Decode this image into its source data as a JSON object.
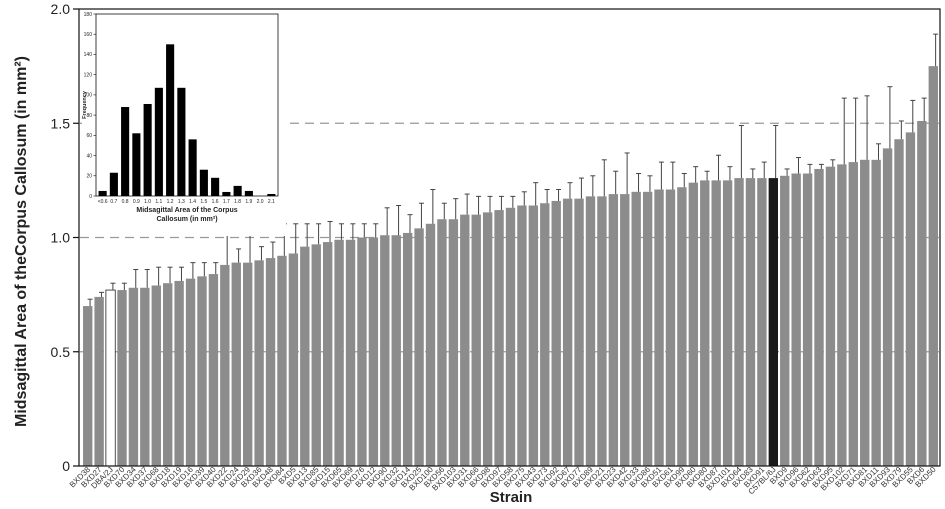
{
  "chart_data": [
    {
      "type": "bar",
      "ylabel": "Midsagittal Area of theCorpus Callosum  (in mm²)",
      "xlabel": "Strain",
      "ylim": [
        0,
        2.0
      ],
      "yticks": [
        "0",
        "0.5",
        "1.0",
        "1.5",
        "2.0"
      ],
      "reference_lines": [
        0.5,
        1.0,
        1.5
      ],
      "grid": false,
      "colors": {
        "default": "#8c8c8c",
        "highlight": "#1a1a1a",
        "open": "#ffffff",
        "errorbar": "#444444",
        "refline": "#999999"
      },
      "categories": [
        "BXD38",
        "BXD27",
        "DBA/2J",
        "BXD70",
        "BXD34",
        "BXD37",
        "BXD68",
        "BXD18",
        "BXD19",
        "BXD16",
        "BXD39",
        "BXD40",
        "BXD22",
        "BXD24",
        "BXD29",
        "BXD36",
        "BXD48",
        "BXD84",
        "BXD5",
        "BXD13",
        "BXD85",
        "BXD15",
        "BXD65",
        "BXD69",
        "BXD76",
        "BXD12",
        "BXD90",
        "BXD32",
        "BXD14",
        "BXD25",
        "BXD100",
        "BXD56",
        "BXD103",
        "BXD31",
        "BXD66",
        "BXD98",
        "BXD97",
        "BXD58",
        "BXD75",
        "BXD43",
        "BXD73",
        "BXD92",
        "BXD67",
        "BXD77",
        "BXD89",
        "BXD21",
        "BXD23",
        "BXD42",
        "BXD33",
        "BXD86",
        "BXD51",
        "BXD61",
        "BXD99",
        "BXD60",
        "BXD80",
        "BXD87",
        "BXD101",
        "BXD64",
        "BXD83",
        "BXD91",
        "C57BL/6J",
        "BXD9",
        "BXD96",
        "BXD62",
        "BXD63",
        "BXD95",
        "BXD102",
        "BXD71",
        "BXD81",
        "BXD11",
        "BXD93",
        "BXD79",
        "BXD55",
        "BXD6",
        "BXD50"
      ],
      "series": [
        {
          "values": [
            0.7,
            0.74,
            0.77,
            0.77,
            0.78,
            0.78,
            0.79,
            0.8,
            0.81,
            0.82,
            0.83,
            0.84,
            0.88,
            0.89,
            0.89,
            0.9,
            0.91,
            0.92,
            0.93,
            0.96,
            0.97,
            0.98,
            0.99,
            0.99,
            1.0,
            1.0,
            1.01,
            1.01,
            1.02,
            1.04,
            1.06,
            1.08,
            1.08,
            1.1,
            1.1,
            1.11,
            1.12,
            1.13,
            1.14,
            1.14,
            1.15,
            1.16,
            1.17,
            1.17,
            1.18,
            1.18,
            1.19,
            1.19,
            1.2,
            1.2,
            1.21,
            1.21,
            1.22,
            1.24,
            1.25,
            1.25,
            1.25,
            1.26,
            1.26,
            1.26,
            1.26,
            1.27,
            1.28,
            1.28,
            1.3,
            1.31,
            1.32,
            1.33,
            1.34,
            1.34,
            1.39,
            1.43,
            1.46,
            1.51,
            1.75
          ],
          "errors": [
            0.03,
            0.02,
            0.03,
            0.03,
            0.08,
            0.08,
            0.08,
            0.07,
            0.06,
            0.07,
            0.06,
            0.05,
            0.14,
            0.06,
            0.13,
            0.06,
            0.07,
            0.14,
            0.13,
            0.1,
            0.09,
            0.09,
            0.07,
            0.07,
            0.06,
            0.06,
            0.12,
            0.13,
            0.08,
            0.11,
            0.15,
            0.07,
            0.09,
            0.09,
            0.08,
            0.07,
            0.06,
            0.05,
            0.06,
            0.1,
            0.06,
            0.05,
            0.07,
            0.09,
            0.09,
            0.16,
            0.1,
            0.18,
            0.08,
            0.07,
            0.12,
            0.12,
            0.06,
            0.07,
            0.04,
            0.11,
            0.06,
            0.23,
            0.04,
            0.07,
            0.23,
            0.03,
            0.07,
            0.04,
            0.02,
            0.03,
            0.29,
            0.28,
            0.28,
            0.07,
            0.27,
            0.08,
            0.14,
            0.1,
            0.14
          ]
        }
      ],
      "highlight_index": 60,
      "open_index": 2
    },
    {
      "type": "bar",
      "xlabel": "Midsagittal Area of the Corpus Callosum (in mm²)",
      "ylabel": "Frequency",
      "ylim": [
        0,
        180
      ],
      "yticks": [
        "0",
        "20",
        "40",
        "60",
        "80",
        "100",
        "120",
        "140",
        "160",
        "180"
      ],
      "categories": [
        "<0.6",
        "0.7",
        "0.8",
        "0.9",
        "1.0",
        "1.1",
        "1.2",
        "1.3",
        "1.4",
        "1.5",
        "1.6",
        "1.7",
        "1.8",
        "1.9",
        "2.0",
        "2.1"
      ],
      "values": [
        5,
        23,
        88,
        62,
        91,
        107,
        150,
        107,
        56,
        26,
        18,
        4,
        10,
        5,
        0,
        2
      ]
    }
  ]
}
